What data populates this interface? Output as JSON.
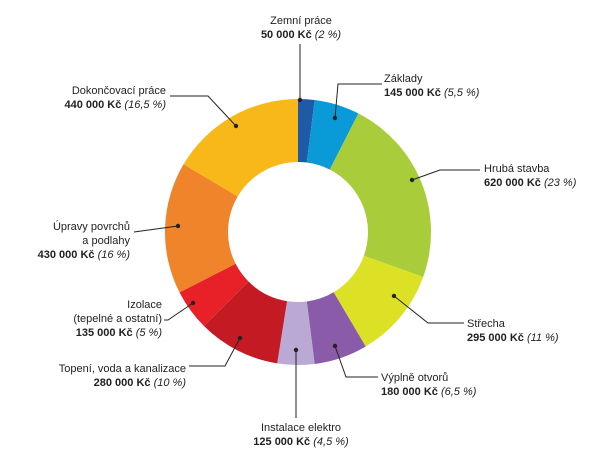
{
  "chart_data": {
    "type": "pie",
    "variant": "donut",
    "title": "",
    "slices": [
      {
        "label": "Zemní práce",
        "value_text": "50 000 Kč",
        "percent_text": "(2 %)",
        "percent": 2,
        "color": "#1f5aa6"
      },
      {
        "label": "Základy",
        "value_text": "145 000 Kč",
        "percent_text": "(5,5 %)",
        "percent": 5.5,
        "color": "#0a9ad8"
      },
      {
        "label": "Hrubá stavba",
        "value_text": "620 000 Kč",
        "percent_text": "(23 %)",
        "percent": 23,
        "color": "#a9cc3a"
      },
      {
        "label": "Střecha",
        "value_text": "295 000 Kč",
        "percent_text": "(11 %)",
        "percent": 11,
        "color": "#dde126"
      },
      {
        "label": "Výplně otvorů",
        "value_text": "180 000 Kč",
        "percent_text": "(6,5 %)",
        "percent": 6.5,
        "color": "#8a5ba8"
      },
      {
        "label": "Instalace elektro",
        "value_text": "125 000 Kč",
        "percent_text": "(4,5 %)",
        "percent": 4.5,
        "color": "#b9a9d4"
      },
      {
        "label": "Topení, voda a kanalizace",
        "value_text": "280 000 Kč",
        "percent_text": "(10 %)",
        "percent": 10,
        "color": "#c31a23"
      },
      {
        "label": "Izolace\n(tepelné a ostatní)",
        "value_text": "135 000 Kč",
        "percent_text": "(5 %)",
        "percent": 5,
        "color": "#e82128"
      },
      {
        "label": "Úpravy povrchů\na podlahy",
        "value_text": "430 000 Kč",
        "percent_text": "(16 %)",
        "percent": 16,
        "color": "#f0842a"
      },
      {
        "label": "Dokončovací práce",
        "value_text": "440 000 Kč",
        "percent_text": "(16,5 %)",
        "percent": 16.5,
        "color": "#f9b81a"
      }
    ]
  }
}
